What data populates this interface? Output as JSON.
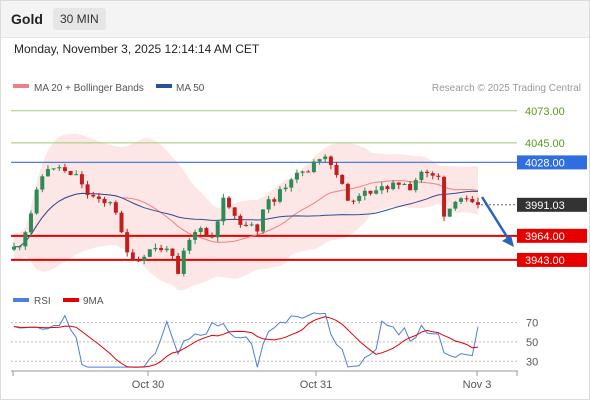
{
  "header": {
    "title": "Gold",
    "timeframe": "30 MIN",
    "datetime": "Monday, November 3, 2025 12:14:14 AM CET"
  },
  "legend": {
    "ma20_label": "MA 20 + Bollinger Bands",
    "ma50_label": "MA 50",
    "credit": "Research © 2025 Trading Central",
    "rsi_label": "RSI",
    "rsi_ma_label": "9MA"
  },
  "colors": {
    "ma20": "#f08080",
    "ma50": "#2c4f93",
    "band_fill": "#fde3e3",
    "candle_up": "#2e8b57",
    "candle_down": "#c21e1e",
    "resistance_green": "#9ccf6a",
    "pivot_blue": "#4a7ee0",
    "support_red": "#e60000",
    "current_price_bg": "#333333",
    "rsi_line": "#4a7ee0",
    "rsi_ma_line": "#e60000",
    "arrow": "#2e62b5"
  },
  "chart_data": [
    {
      "type": "candlestick",
      "y_range": [
        3922,
        4085
      ],
      "x_ticks": [
        "Oct 30",
        "Oct 31",
        "Nov 3"
      ],
      "levels": [
        {
          "value": 4073,
          "label": "4073.00",
          "kind": "resistance"
        },
        {
          "value": 4045,
          "label": "4045.00",
          "kind": "resistance"
        },
        {
          "value": 4028,
          "label": "4028.00",
          "kind": "pivot"
        },
        {
          "value": 3964,
          "label": "3964.00",
          "kind": "support"
        },
        {
          "value": 3943,
          "label": "3943.00",
          "kind": "support"
        }
      ],
      "current_price": {
        "value": 3991.03,
        "label": "3991.03"
      },
      "close_path": [
        3954,
        3956,
        3968,
        3984,
        4003,
        4016,
        4023,
        4022,
        4024,
        4020,
        4016,
        4018,
        4008,
        4000,
        3998,
        3995,
        3992,
        3994,
        3985,
        3966,
        3949,
        3944,
        3943,
        3947,
        3952,
        3954,
        3951,
        3954,
        3945,
        3930,
        3950,
        3960,
        3967,
        3972,
        3964,
        3963,
        3978,
        3996,
        3989,
        3980,
        3975,
        3972,
        3975,
        3969,
        3988,
        3995,
        3994,
        4005,
        4007,
        4014,
        4018,
        4020,
        4019,
        4028,
        4032,
        4034,
        4026,
        4018,
        4008,
        3996,
        3993,
        4000,
        4002,
        4000,
        4005,
        4008,
        4004,
        4009,
        4009,
        4010,
        4005,
        4013,
        4020,
        4018,
        4016,
        4015,
        3982,
        3988,
        3995,
        3997,
        3995,
        3992,
        3991.03
      ]
    },
    {
      "type": "line",
      "name": "RSI",
      "y_range": [
        22,
        82
      ],
      "y_ticks": [
        70,
        50,
        30
      ],
      "legend": [
        "RSI",
        "9MA"
      ]
    }
  ]
}
